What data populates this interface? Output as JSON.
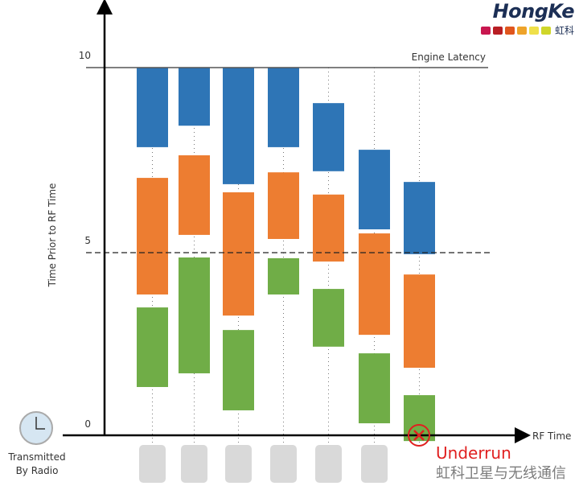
{
  "logo": {
    "text": "HongKe",
    "subtext": "虹科",
    "swatches": [
      "#c8174f",
      "#b81e24",
      "#e0561e",
      "#eea32a",
      "#efe04a",
      "#cfd62a"
    ]
  },
  "chart_data": {
    "type": "floating-bar",
    "ylabel": "Time Prior to RF Time",
    "xlabel": "RF Time",
    "ylim": [
      0,
      10
    ],
    "yticks": [
      "0",
      "5",
      "10"
    ],
    "engine_latency": {
      "label": "Engine Latency",
      "value": 10
    },
    "threshold": {
      "value": 4.8,
      "style": "dashed"
    },
    "colors": {
      "blue": "#2e75b6",
      "orange": "#ed7d31",
      "green": "#70ad47",
      "slot": "#d9d9d9"
    },
    "columns": [
      {
        "blue": [
          7.85,
          10
        ],
        "orange": [
          3.87,
          7.02
        ],
        "green": [
          1.37,
          3.52
        ]
      },
      {
        "blue": [
          8.43,
          10
        ],
        "orange": [
          5.48,
          7.63
        ],
        "green": [
          1.74,
          4.87
        ]
      },
      {
        "blue": [
          6.85,
          10
        ],
        "orange": [
          3.3,
          6.63
        ],
        "green": [
          0.74,
          2.91
        ]
      },
      {
        "blue": [
          7.85,
          10
        ],
        "orange": [
          5.37,
          7.17
        ],
        "green": [
          3.87,
          4.85
        ]
      },
      {
        "blue": [
          7.2,
          9.04
        ],
        "orange": [
          4.76,
          6.57
        ],
        "green": [
          2.46,
          4.02
        ]
      },
      {
        "blue": [
          5.63,
          7.78
        ],
        "orange": [
          2.78,
          5.52
        ],
        "green": [
          0.39,
          2.28
        ]
      },
      {
        "blue": [
          4.96,
          6.91
        ],
        "orange": [
          1.89,
          4.41
        ],
        "green": [
          -0.09,
          1.15
        ],
        "underrun": true
      }
    ]
  },
  "radio_label": [
    "Transmitted",
    "By Radio"
  ],
  "underrun_label": "Underrun",
  "watermark": "虹科卫星与无线通信"
}
